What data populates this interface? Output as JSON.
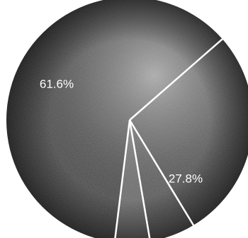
{
  "chart_data": {
    "type": "pie",
    "slices": [
      {
        "label": "",
        "value": 61.6,
        "value_label": "61.6%",
        "color": "#4a4a4a"
      },
      {
        "label": "",
        "value": 27.8,
        "value_label": "27.8%",
        "color": "#505050"
      },
      {
        "label": "",
        "value": 6.0,
        "value_label": "",
        "color": "#5a5a5a"
      },
      {
        "label": "",
        "value": 4.6,
        "value_label": "",
        "color": "#6e6e6e"
      }
    ],
    "title": "",
    "legend": "none",
    "separator_color": "#ffffff",
    "background_color": "#ffffff"
  }
}
